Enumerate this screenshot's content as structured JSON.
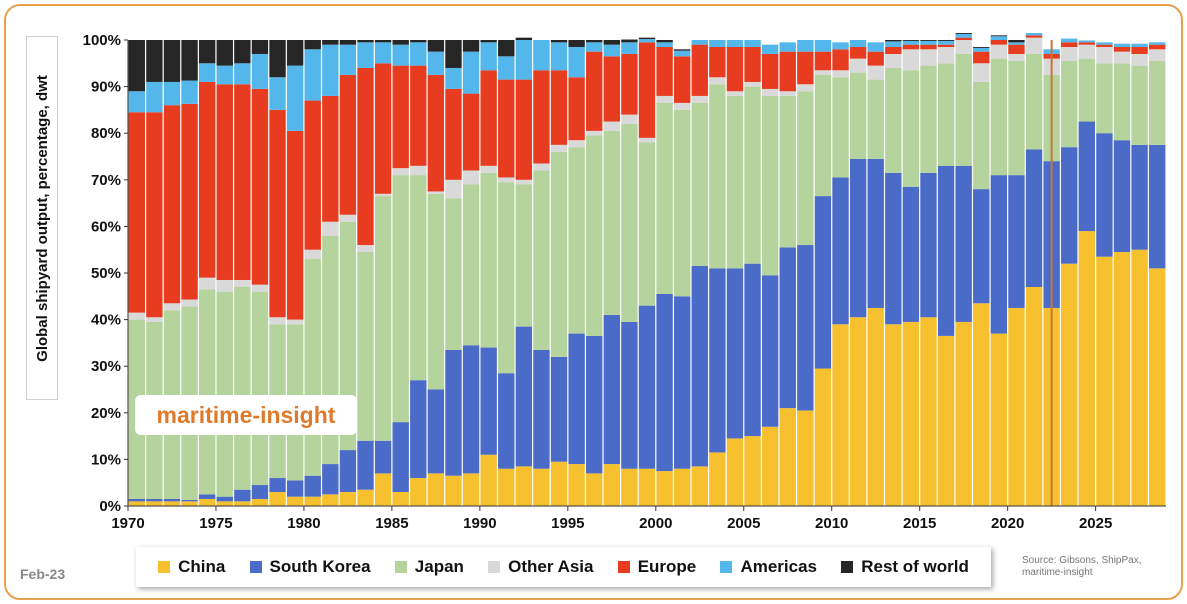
{
  "date_label": "Feb-23",
  "source_line1": "Source: Gibsons, ShipPax,",
  "source_line2": "maritime-insight",
  "watermark": "maritime-insight",
  "colors": {
    "China": "#f6c02f",
    "South Korea": "#4a6bc7",
    "Japan": "#b5d39c",
    "Other Asia": "#d9d9d9",
    "Europe": "#e73c1f",
    "Americas": "#54b7eb",
    "Rest of world": "#262626"
  },
  "chart_data": {
    "type": "bar",
    "stacked": true,
    "ylabel": "Global shipyard output, percentage,  dwt",
    "ylim": [
      0,
      100
    ],
    "y_ticks": [
      "0%",
      "10%",
      "20%",
      "30%",
      "40%",
      "50%",
      "60%",
      "70%",
      "80%",
      "90%",
      "100%"
    ],
    "x_ticks": [
      "1970",
      "1975",
      "1980",
      "1985",
      "1990",
      "1995",
      "2000",
      "2005",
      "2010",
      "2015",
      "2020",
      "2025"
    ],
    "x_tick_years": [
      1970,
      1975,
      1980,
      1985,
      1990,
      1995,
      2000,
      2005,
      2010,
      2015,
      2020,
      2025
    ],
    "vertical_marker_year": 2022.5,
    "legend_position": "bottom",
    "grid": false,
    "years": [
      1970,
      1971,
      1972,
      1973,
      1974,
      1975,
      1976,
      1977,
      1978,
      1979,
      1980,
      1981,
      1982,
      1983,
      1984,
      1985,
      1986,
      1987,
      1988,
      1989,
      1990,
      1991,
      1992,
      1993,
      1994,
      1995,
      1996,
      1997,
      1998,
      1999,
      2000,
      2001,
      2002,
      2003,
      2004,
      2005,
      2006,
      2007,
      2008,
      2009,
      2010,
      2011,
      2012,
      2013,
      2014,
      2015,
      2016,
      2017,
      2018,
      2019,
      2020,
      2021,
      2022,
      2023,
      2024,
      2025,
      2026,
      2027,
      2028
    ],
    "series": [
      {
        "name": "China",
        "values": [
          1,
          1,
          1,
          1,
          1.5,
          1,
          1,
          1.5,
          3,
          2,
          2,
          2.5,
          3,
          3.5,
          7,
          3,
          6,
          7,
          6.5,
          7,
          11,
          8,
          8.5,
          8,
          9.5,
          9,
          7,
          9,
          8,
          8,
          7.5,
          8,
          8.5,
          11.5,
          14.5,
          15,
          17,
          21,
          20.5,
          29.5,
          39,
          40.5,
          42.5,
          39,
          39.5,
          40.5,
          36.5,
          39.5,
          43.5,
          37,
          42.5,
          47,
          42.5,
          52,
          59,
          53.5,
          54.5,
          55,
          51
        ]
      },
      {
        "name": "South Korea",
        "values": [
          0.5,
          0.5,
          0.5,
          0.3,
          1,
          1,
          2.5,
          3,
          3,
          3.5,
          4.5,
          6.5,
          9,
          10.5,
          7,
          15,
          21,
          18,
          27,
          27.5,
          23,
          20.5,
          30,
          25.5,
          22.5,
          28,
          29.5,
          32,
          31.5,
          35,
          38,
          37,
          43,
          39.5,
          36.5,
          37,
          32.5,
          34.5,
          35.5,
          37,
          31.5,
          34,
          32,
          32.5,
          29,
          31,
          36.5,
          33.5,
          24.5,
          34,
          28.5,
          29.5,
          31.5,
          25,
          23.5,
          26.5,
          24,
          22.5,
          26.5
        ]
      },
      {
        "name": "Japan",
        "values": [
          38.5,
          38,
          40.5,
          41.5,
          44,
          44,
          43.5,
          41.5,
          33,
          33.5,
          46.5,
          49,
          49,
          40.5,
          52.5,
          53,
          44,
          42,
          32.5,
          34.5,
          37.5,
          41,
          30.5,
          38.5,
          44,
          40,
          43,
          39.5,
          42.5,
          35,
          41,
          40,
          35,
          39.5,
          37,
          38,
          38.5,
          32.5,
          33,
          26,
          21.5,
          18.5,
          17,
          22.5,
          25,
          23,
          22,
          24,
          23,
          25,
          24.5,
          20.5,
          18.5,
          18.5,
          13.5,
          15,
          16.5,
          17,
          18
        ]
      },
      {
        "name": "Other Asia",
        "values": [
          1.5,
          1,
          1.5,
          1.5,
          2.5,
          2.5,
          1.5,
          1.5,
          1.5,
          1,
          2,
          3,
          1.5,
          1.5,
          0.5,
          1.5,
          2,
          0.5,
          4,
          3,
          1.5,
          1,
          1,
          1.5,
          1.5,
          1.5,
          1,
          2,
          2,
          1,
          1.5,
          1.5,
          1.5,
          1.5,
          1,
          1,
          1.5,
          1,
          1.5,
          1,
          1.5,
          3,
          3,
          3,
          4.5,
          3.5,
          3.5,
          3,
          4,
          3,
          1.5,
          3.5,
          3.5,
          3,
          3,
          3.5,
          2.5,
          2.5,
          2.5
        ]
      },
      {
        "name": "Europe",
        "values": [
          43,
          44,
          42.5,
          42,
          42,
          42,
          42,
          42,
          44.5,
          40.5,
          32,
          27,
          30,
          38,
          28,
          22,
          21.5,
          25,
          19.5,
          16.5,
          20.5,
          21,
          21.5,
          20,
          16,
          13.5,
          17,
          14,
          13,
          20.5,
          10.5,
          10,
          11,
          6.5,
          9.5,
          7.5,
          7.5,
          8.5,
          7,
          4,
          4.5,
          2.5,
          3,
          1.5,
          1,
          1,
          0.5,
          0.5,
          2.5,
          1,
          2,
          0.5,
          1,
          1,
          0.5,
          0.5,
          1,
          1.5,
          1
        ]
      },
      {
        "name": "Americas",
        "values": [
          4.5,
          6.5,
          5,
          5,
          4,
          4,
          4.5,
          7.5,
          7,
          14,
          11,
          11,
          6.5,
          5.5,
          4.5,
          4.5,
          5,
          5,
          4.5,
          9,
          6,
          5,
          8.5,
          6.5,
          6,
          6.5,
          2,
          2.5,
          2.5,
          0.7,
          1,
          1.2,
          1,
          1.5,
          1.5,
          1.5,
          2,
          2,
          2.5,
          2.5,
          1.5,
          1.5,
          2,
          1.2,
          0.8,
          0.8,
          0.8,
          0.8,
          0.8,
          0.8,
          0.5,
          0.5,
          1,
          0.8,
          0.4,
          0.5,
          0.7,
          0.7,
          0.5
        ]
      },
      {
        "name": "Rest of world",
        "values": [
          11,
          9,
          9,
          8.7,
          5,
          5.5,
          5,
          3,
          8,
          5.5,
          2,
          1,
          1,
          0.5,
          0.5,
          1,
          0.5,
          2.5,
          6,
          2.5,
          0.5,
          3.5,
          0.5,
          0,
          0.5,
          1.5,
          0.5,
          1,
          0.6,
          0.3,
          0.5,
          0.3,
          0,
          0,
          0,
          0,
          0,
          0,
          0,
          0,
          0,
          0,
          0,
          0.3,
          0.2,
          0.2,
          0.2,
          0.2,
          0.2,
          0.2,
          0.5,
          0,
          0,
          0,
          0,
          0,
          0,
          0,
          0
        ]
      }
    ]
  }
}
